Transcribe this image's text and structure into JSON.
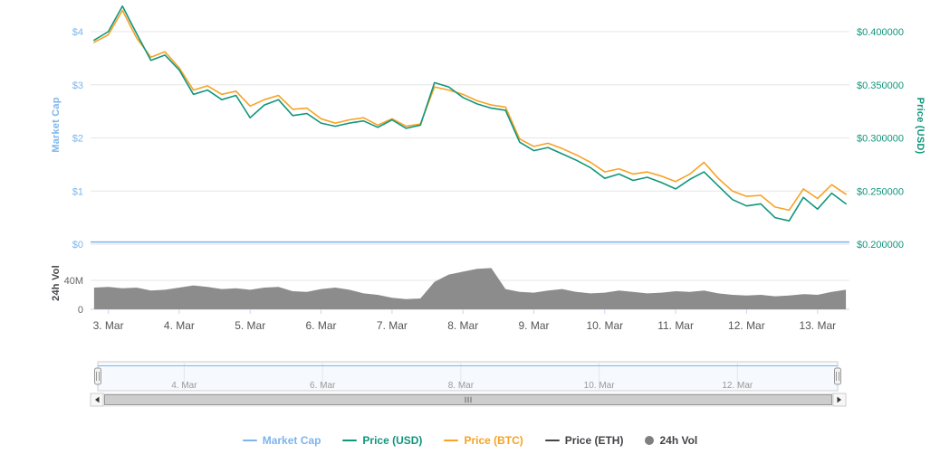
{
  "axes": {
    "market_cap_title": "Market Cap",
    "price_usd_title": "Price (USD)",
    "vol_title": "24h Vol",
    "left_tick_labels": [
      "$4",
      "$3",
      "$2",
      "$1",
      "$0"
    ],
    "left_tick_values": [
      4,
      3,
      2,
      1,
      0
    ],
    "right_tick_labels": [
      "$0.400000",
      "$0.350000",
      "$0.300000",
      "$0.250000",
      "$0.200000"
    ],
    "right_tick_values": [
      0.4,
      0.35,
      0.3,
      0.25,
      0.2
    ],
    "vol_tick_labels": [
      "40M",
      "0"
    ],
    "vol_tick_values": [
      40,
      0
    ],
    "x_tick_labels": [
      "3. Mar",
      "4. Mar",
      "5. Mar",
      "6. Mar",
      "7. Mar",
      "8. Mar",
      "9. Mar",
      "10. Mar",
      "11. Mar",
      "12. Mar",
      "13. Mar"
    ],
    "x_tick_values": [
      3,
      4,
      5,
      6,
      7,
      8,
      9,
      10,
      11,
      12,
      13
    ]
  },
  "navigator": {
    "tick_labels": [
      "4. Mar",
      "6. Mar",
      "8. Mar",
      "10. Mar",
      "12. Mar"
    ],
    "tick_values": [
      4,
      6,
      8,
      10,
      12
    ]
  },
  "legend": {
    "items": [
      {
        "label": "Market Cap",
        "color": "#7cb5ec",
        "label_color": "#7cb5ec",
        "symbol": "line"
      },
      {
        "label": "Price (USD)",
        "color": "#10967c",
        "label_color": "#10967c",
        "symbol": "line"
      },
      {
        "label": "Price (BTC)",
        "color": "#f7a226",
        "label_color": "#f7a226",
        "symbol": "line"
      },
      {
        "label": "Price (ETH)",
        "color": "#434348",
        "label_color": "#434348",
        "symbol": "line"
      },
      {
        "label": "24h Vol",
        "color": "#7f7f7f",
        "label_color": "#434348",
        "symbol": "circle"
      }
    ]
  },
  "chart_data": {
    "type": "line",
    "x_unit": "day of March",
    "x": [
      2.8,
      3,
      3.2,
      3.4,
      3.6,
      3.8,
      4,
      4.2,
      4.4,
      4.6,
      4.8,
      5,
      5.2,
      5.4,
      5.6,
      5.8,
      6,
      6.2,
      6.4,
      6.6,
      6.8,
      7,
      7.2,
      7.4,
      7.6,
      7.8,
      8,
      8.2,
      8.4,
      8.6,
      8.8,
      9,
      9.2,
      9.4,
      9.6,
      9.8,
      10,
      10.2,
      10.4,
      10.6,
      10.8,
      11,
      11.2,
      11.4,
      11.6,
      11.8,
      12,
      12.2,
      12.4,
      12.6,
      12.8,
      13,
      13.2,
      13.4
    ],
    "series": [
      {
        "name": "Market Cap",
        "type": "line",
        "axis": "market_cap_left",
        "color": "#7cb5ec",
        "values_constant": 0.04
      },
      {
        "name": "Price (USD)",
        "type": "line",
        "axis": "price_usd_right",
        "color": "#10967c",
        "values": [
          0.392,
          0.4,
          0.424,
          0.398,
          0.373,
          0.378,
          0.364,
          0.341,
          0.345,
          0.336,
          0.34,
          0.319,
          0.331,
          0.336,
          0.321,
          0.323,
          0.314,
          0.311,
          0.314,
          0.316,
          0.31,
          0.317,
          0.309,
          0.312,
          0.352,
          0.348,
          0.338,
          0.332,
          0.328,
          0.326,
          0.296,
          0.288,
          0.291,
          0.285,
          0.279,
          0.272,
          0.262,
          0.266,
          0.26,
          0.263,
          0.258,
          0.252,
          0.261,
          0.268,
          0.255,
          0.242,
          0.236,
          0.238,
          0.225,
          0.222,
          0.244,
          0.233,
          0.248,
          0.238
        ]
      },
      {
        "name": "Price (BTC)",
        "type": "line",
        "axis": "price_usd_right",
        "color": "#f7a226",
        "values": [
          0.39,
          0.397,
          0.42,
          0.394,
          0.376,
          0.381,
          0.366,
          0.345,
          0.349,
          0.341,
          0.344,
          0.33,
          0.336,
          0.34,
          0.327,
          0.328,
          0.318,
          0.314,
          0.317,
          0.319,
          0.312,
          0.318,
          0.311,
          0.313,
          0.348,
          0.345,
          0.341,
          0.335,
          0.331,
          0.329,
          0.299,
          0.292,
          0.295,
          0.29,
          0.284,
          0.277,
          0.268,
          0.271,
          0.266,
          0.268,
          0.264,
          0.259,
          0.266,
          0.277,
          0.262,
          0.25,
          0.245,
          0.246,
          0.235,
          0.232,
          0.252,
          0.243,
          0.256,
          0.247
        ]
      },
      {
        "name": "Price (ETH)",
        "type": "line",
        "color": "#434348",
        "visible": false,
        "values": []
      },
      {
        "name": "24h Vol",
        "type": "area",
        "axis": "vol_left",
        "unit": "M",
        "color": "#8c8c8c",
        "values": [
          30,
          31,
          29,
          30,
          26,
          27,
          30,
          33,
          31,
          28,
          29,
          27,
          30,
          31,
          25,
          24,
          28,
          30,
          27,
          22,
          20,
          16,
          14,
          15,
          38,
          48,
          52,
          56,
          57,
          28,
          24,
          23,
          26,
          28,
          24,
          22,
          23,
          26,
          24,
          22,
          23,
          25,
          24,
          26,
          22,
          20,
          19,
          20,
          18,
          19,
          21,
          20,
          24,
          27
        ]
      }
    ],
    "ylim_left_market_cap": [
      0,
      4
    ],
    "ylim_right_price_usd": [
      0.2,
      0.43
    ],
    "ylim_vol": [
      0,
      60
    ],
    "grid": "horizontal"
  }
}
